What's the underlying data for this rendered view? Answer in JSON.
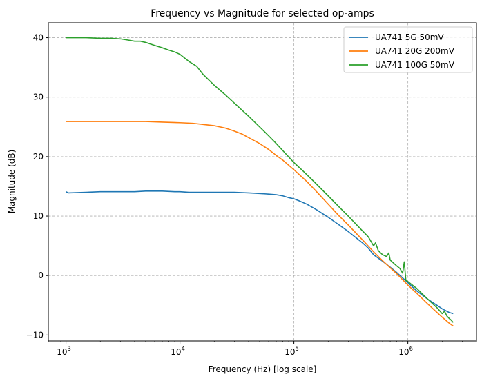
{
  "chart_data": {
    "type": "line",
    "title": "Frequency vs Magnitude for selected op-amps",
    "xlabel": "Frequency (Hz) [log scale]",
    "ylabel": "Magnitude (dB)",
    "xscale": "log",
    "xlim": [
      700,
      4000000
    ],
    "ylim": [
      -11,
      42.5
    ],
    "grid": true,
    "grid_style": "dashed",
    "legend_position": "top-right",
    "x_ticks": [
      {
        "value": 1000,
        "base": "10",
        "exp": "3"
      },
      {
        "value": 10000,
        "base": "10",
        "exp": "4"
      },
      {
        "value": 100000,
        "base": "10",
        "exp": "5"
      },
      {
        "value": 1000000,
        "base": "10",
        "exp": "6"
      }
    ],
    "y_ticks": [
      {
        "value": 40,
        "label": "40"
      },
      {
        "value": 30,
        "label": "30"
      },
      {
        "value": 20,
        "label": "20"
      },
      {
        "value": 10,
        "label": "10"
      },
      {
        "value": 0,
        "label": "0"
      },
      {
        "value": -10,
        "label": "−10"
      }
    ],
    "series": [
      {
        "name": "UA741 5G 50mV",
        "color": "#1f77b4",
        "points": [
          [
            1000,
            14.1
          ],
          [
            1050,
            13.9
          ],
          [
            1500,
            14.0
          ],
          [
            2000,
            14.1
          ],
          [
            3000,
            14.1
          ],
          [
            4000,
            14.1
          ],
          [
            5000,
            14.2
          ],
          [
            7000,
            14.2
          ],
          [
            9000,
            14.1
          ],
          [
            10000,
            14.1
          ],
          [
            12000,
            14.0
          ],
          [
            15000,
            14.0
          ],
          [
            20000,
            14.0
          ],
          [
            30000,
            14.0
          ],
          [
            40000,
            13.9
          ],
          [
            50000,
            13.8
          ],
          [
            60000,
            13.7
          ],
          [
            70000,
            13.6
          ],
          [
            80000,
            13.4
          ],
          [
            90000,
            13.1
          ],
          [
            100000,
            12.9
          ],
          [
            110000,
            12.6
          ],
          [
            130000,
            12.0
          ],
          [
            160000,
            11.0
          ],
          [
            200000,
            9.8
          ],
          [
            250000,
            8.5
          ],
          [
            300000,
            7.4
          ],
          [
            400000,
            5.5
          ],
          [
            450000,
            4.6
          ],
          [
            500000,
            3.5
          ],
          [
            600000,
            2.4
          ],
          [
            700000,
            1.4
          ],
          [
            800000,
            0.5
          ],
          [
            1000000,
            -1.2
          ],
          [
            1200000,
            -2.6
          ],
          [
            1500000,
            -4.0
          ],
          [
            1800000,
            -5.0
          ],
          [
            2000000,
            -5.6
          ],
          [
            2300000,
            -6.2
          ],
          [
            2500000,
            -6.4
          ]
        ]
      },
      {
        "name": "UA741 20G 200mV",
        "color": "#ff7f0e",
        "points": [
          [
            1000,
            25.9
          ],
          [
            2000,
            25.9
          ],
          [
            3000,
            25.9
          ],
          [
            5000,
            25.9
          ],
          [
            7000,
            25.8
          ],
          [
            10000,
            25.7
          ],
          [
            13000,
            25.6
          ],
          [
            16000,
            25.4
          ],
          [
            20000,
            25.2
          ],
          [
            25000,
            24.8
          ],
          [
            30000,
            24.3
          ],
          [
            35000,
            23.8
          ],
          [
            40000,
            23.2
          ],
          [
            50000,
            22.2
          ],
          [
            60000,
            21.2
          ],
          [
            70000,
            20.2
          ],
          [
            80000,
            19.4
          ],
          [
            100000,
            17.8
          ],
          [
            130000,
            15.8
          ],
          [
            160000,
            14.0
          ],
          [
            200000,
            12.0
          ],
          [
            250000,
            10.0
          ],
          [
            300000,
            8.5
          ],
          [
            400000,
            6.0
          ],
          [
            500000,
            4.0
          ],
          [
            600000,
            2.5
          ],
          [
            700000,
            1.3
          ],
          [
            800000,
            0.3
          ],
          [
            1000000,
            -1.6
          ],
          [
            1200000,
            -3.0
          ],
          [
            1500000,
            -4.8
          ],
          [
            1800000,
            -6.2
          ],
          [
            2000000,
            -7.0
          ],
          [
            2300000,
            -8.0
          ],
          [
            2500000,
            -8.5
          ]
        ]
      },
      {
        "name": "UA741 100G 50mV",
        "color": "#2ca02c",
        "points": [
          [
            1000,
            40.0
          ],
          [
            1100,
            40.0
          ],
          [
            1500,
            40.0
          ],
          [
            2000,
            39.9
          ],
          [
            2500,
            39.9
          ],
          [
            3000,
            39.8
          ],
          [
            3500,
            39.6
          ],
          [
            4000,
            39.4
          ],
          [
            4500,
            39.4
          ],
          [
            5000,
            39.2
          ],
          [
            6000,
            38.7
          ],
          [
            7000,
            38.3
          ],
          [
            8000,
            37.9
          ],
          [
            9000,
            37.6
          ],
          [
            10000,
            37.2
          ],
          [
            12000,
            36.0
          ],
          [
            14000,
            35.2
          ],
          [
            16000,
            33.8
          ],
          [
            20000,
            32.0
          ],
          [
            25000,
            30.4
          ],
          [
            30000,
            29.0
          ],
          [
            40000,
            26.8
          ],
          [
            50000,
            25.0
          ],
          [
            60000,
            23.5
          ],
          [
            70000,
            22.2
          ],
          [
            80000,
            21.0
          ],
          [
            100000,
            19.0
          ],
          [
            120000,
            17.6
          ],
          [
            150000,
            15.8
          ],
          [
            200000,
            13.4
          ],
          [
            250000,
            11.5
          ],
          [
            300000,
            10.0
          ],
          [
            400000,
            7.5
          ],
          [
            450000,
            6.5
          ],
          [
            500000,
            5.0
          ],
          [
            520000,
            5.5
          ],
          [
            550000,
            4.2
          ],
          [
            600000,
            3.5
          ],
          [
            650000,
            3.2
          ],
          [
            680000,
            3.8
          ],
          [
            700000,
            2.6
          ],
          [
            800000,
            1.6
          ],
          [
            850000,
            1.2
          ],
          [
            900000,
            0.4
          ],
          [
            930000,
            2.3
          ],
          [
            960000,
            -0.8
          ],
          [
            1000000,
            -1.0
          ],
          [
            1200000,
            -2.2
          ],
          [
            1500000,
            -4.0
          ],
          [
            1800000,
            -5.4
          ],
          [
            2000000,
            -6.4
          ],
          [
            2100000,
            -6.0
          ],
          [
            2200000,
            -6.8
          ],
          [
            2300000,
            -7.2
          ],
          [
            2400000,
            -7.5
          ],
          [
            2500000,
            -7.9
          ]
        ]
      }
    ]
  }
}
